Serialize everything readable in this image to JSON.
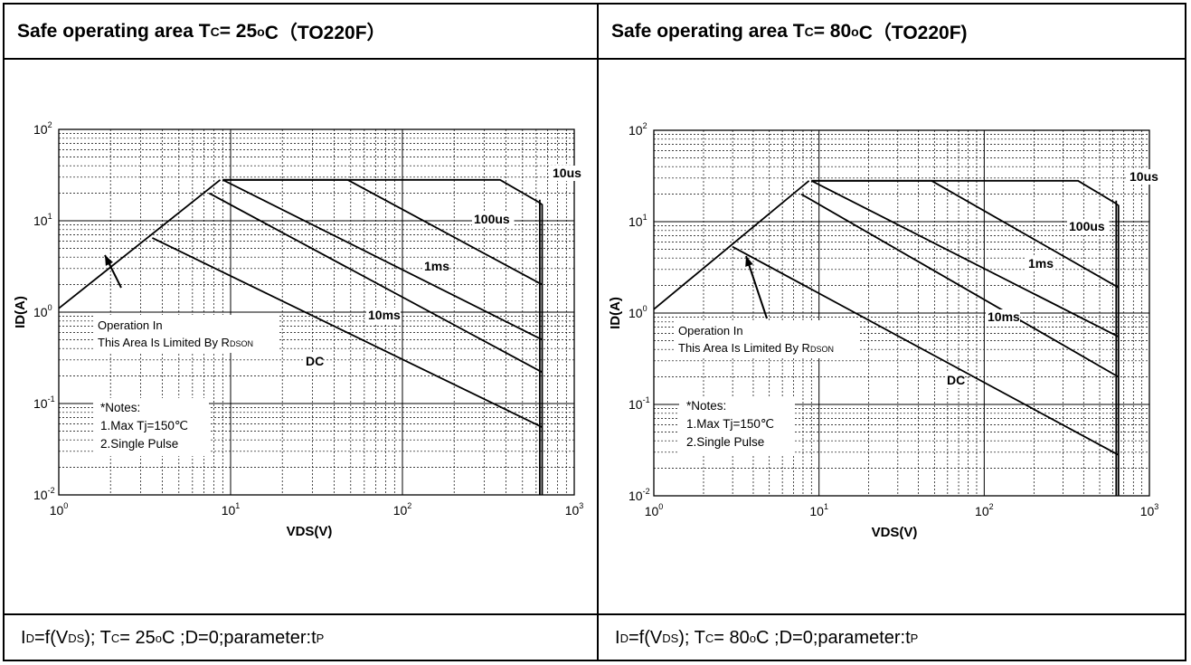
{
  "panels": [
    {
      "header": {
        "prefix": "Safe operating area T",
        "sub": "C",
        "rest": "= 25",
        "sup": "o",
        "tail": "C（TO220F）"
      },
      "footer": {
        "p1": "I",
        "s1": "D",
        "p2": "=f(V",
        "s2": "DS",
        "p3": " ); T",
        "s3": "C",
        "p4": " = 25",
        "sup": "o",
        "p5": "C ;D=0;parameter:t",
        "s4": "P"
      },
      "annotation_operation": [
        "Operation In",
        "This Area Is Limited By R"
      ],
      "annotation_operation_sub": "DSON",
      "notes": [
        "*Notes:",
        "1.Max Tj=150℃",
        "2.Single Pulse"
      ]
    },
    {
      "header": {
        "prefix": "Safe operating area T",
        "sub": "C",
        "rest": "= 80",
        "sup": "o",
        "tail": "C（TO220F)"
      },
      "footer": {
        "p1": "I",
        "s1": "D",
        "p2": "=f(V",
        "s2": "DS",
        "p3": " ); T",
        "s3": "C",
        "p4": " = 80",
        "sup": "o",
        "p5": "C ;D=0;parameter:t",
        "s4": "P"
      },
      "annotation_operation": [
        "Operation In",
        "This Area Is Limited By R"
      ],
      "annotation_operation_sub": "DSON",
      "notes": [
        "*Notes:",
        "1.Max Tj=150℃",
        "2.Single Pulse"
      ]
    }
  ],
  "chart_data": [
    {
      "type": "line",
      "xlabel": "VDS(V)",
      "ylabel": "ID(A)",
      "xscale": "log",
      "yscale": "log",
      "xlim": [
        1,
        1000
      ],
      "ylim": [
        0.01,
        100
      ],
      "x_ticks": [
        {
          "base": "10",
          "exp": "0"
        },
        {
          "base": "10",
          "exp": "1"
        },
        {
          "base": "10",
          "exp": "2"
        },
        {
          "base": "10",
          "exp": "3"
        }
      ],
      "y_ticks": [
        {
          "base": "10",
          "exp": "-2"
        },
        {
          "base": "10",
          "exp": "-1"
        },
        {
          "base": "10",
          "exp": "0"
        },
        {
          "base": "10",
          "exp": "1"
        },
        {
          "base": "10",
          "exp": "2"
        }
      ],
      "grid": true,
      "series": [
        {
          "name": "RDSON limit",
          "x": [
            1,
            8.7
          ],
          "y": [
            1.1,
            28
          ]
        },
        {
          "name": "10us",
          "x": [
            9,
            370,
            620,
            650,
            650
          ],
          "y": [
            28,
            28,
            16,
            15,
            0.01
          ]
        },
        {
          "name": "100us",
          "x": [
            9,
            48,
            650
          ],
          "y": [
            28,
            28,
            2.0
          ]
        },
        {
          "name": "1ms",
          "x": [
            9,
            650
          ],
          "y": [
            28,
            0.5
          ]
        },
        {
          "name": "10ms",
          "x": [
            7.5,
            650
          ],
          "y": [
            20,
            0.22
          ]
        },
        {
          "name": "DC",
          "x": [
            3.5,
            650
          ],
          "y": [
            6.5,
            0.055
          ]
        },
        {
          "name": "650V limit",
          "x": [
            630,
            630
          ],
          "y": [
            0.01,
            17
          ]
        }
      ],
      "labels": [
        "10us",
        "100us",
        "1ms",
        "10ms",
        "DC"
      ]
    },
    {
      "type": "line",
      "xlabel": "VDS(V)",
      "ylabel": "ID(A)",
      "xscale": "log",
      "yscale": "log",
      "xlim": [
        1,
        1000
      ],
      "ylim": [
        0.01,
        100
      ],
      "x_ticks": [
        {
          "base": "10",
          "exp": "0"
        },
        {
          "base": "10",
          "exp": "1"
        },
        {
          "base": "10",
          "exp": "2"
        },
        {
          "base": "10",
          "exp": "3"
        }
      ],
      "y_ticks": [
        {
          "base": "10",
          "exp": "-2"
        },
        {
          "base": "10",
          "exp": "-1"
        },
        {
          "base": "10",
          "exp": "0"
        },
        {
          "base": "10",
          "exp": "1"
        },
        {
          "base": "10",
          "exp": "2"
        }
      ],
      "grid": true,
      "series": [
        {
          "name": "RDSON limit",
          "x": [
            1,
            8.7
          ],
          "y": [
            1.1,
            28
          ]
        },
        {
          "name": "10us",
          "x": [
            9,
            370,
            620,
            650,
            650
          ],
          "y": [
            28,
            28,
            16,
            15,
            0.01
          ]
        },
        {
          "name": "100us",
          "x": [
            9,
            48,
            650
          ],
          "y": [
            28,
            28,
            1.9
          ]
        },
        {
          "name": "1ms",
          "x": [
            9,
            650
          ],
          "y": [
            28,
            0.55
          ]
        },
        {
          "name": "10ms",
          "x": [
            7.8,
            650
          ],
          "y": [
            20,
            0.2
          ]
        },
        {
          "name": "DC",
          "x": [
            3,
            650
          ],
          "y": [
            5.3,
            0.028
          ]
        },
        {
          "name": "650V limit",
          "x": [
            630,
            630
          ],
          "y": [
            0.01,
            17
          ]
        }
      ],
      "labels": [
        "10us",
        "100us",
        "1ms",
        "10ms",
        "DC"
      ]
    }
  ]
}
